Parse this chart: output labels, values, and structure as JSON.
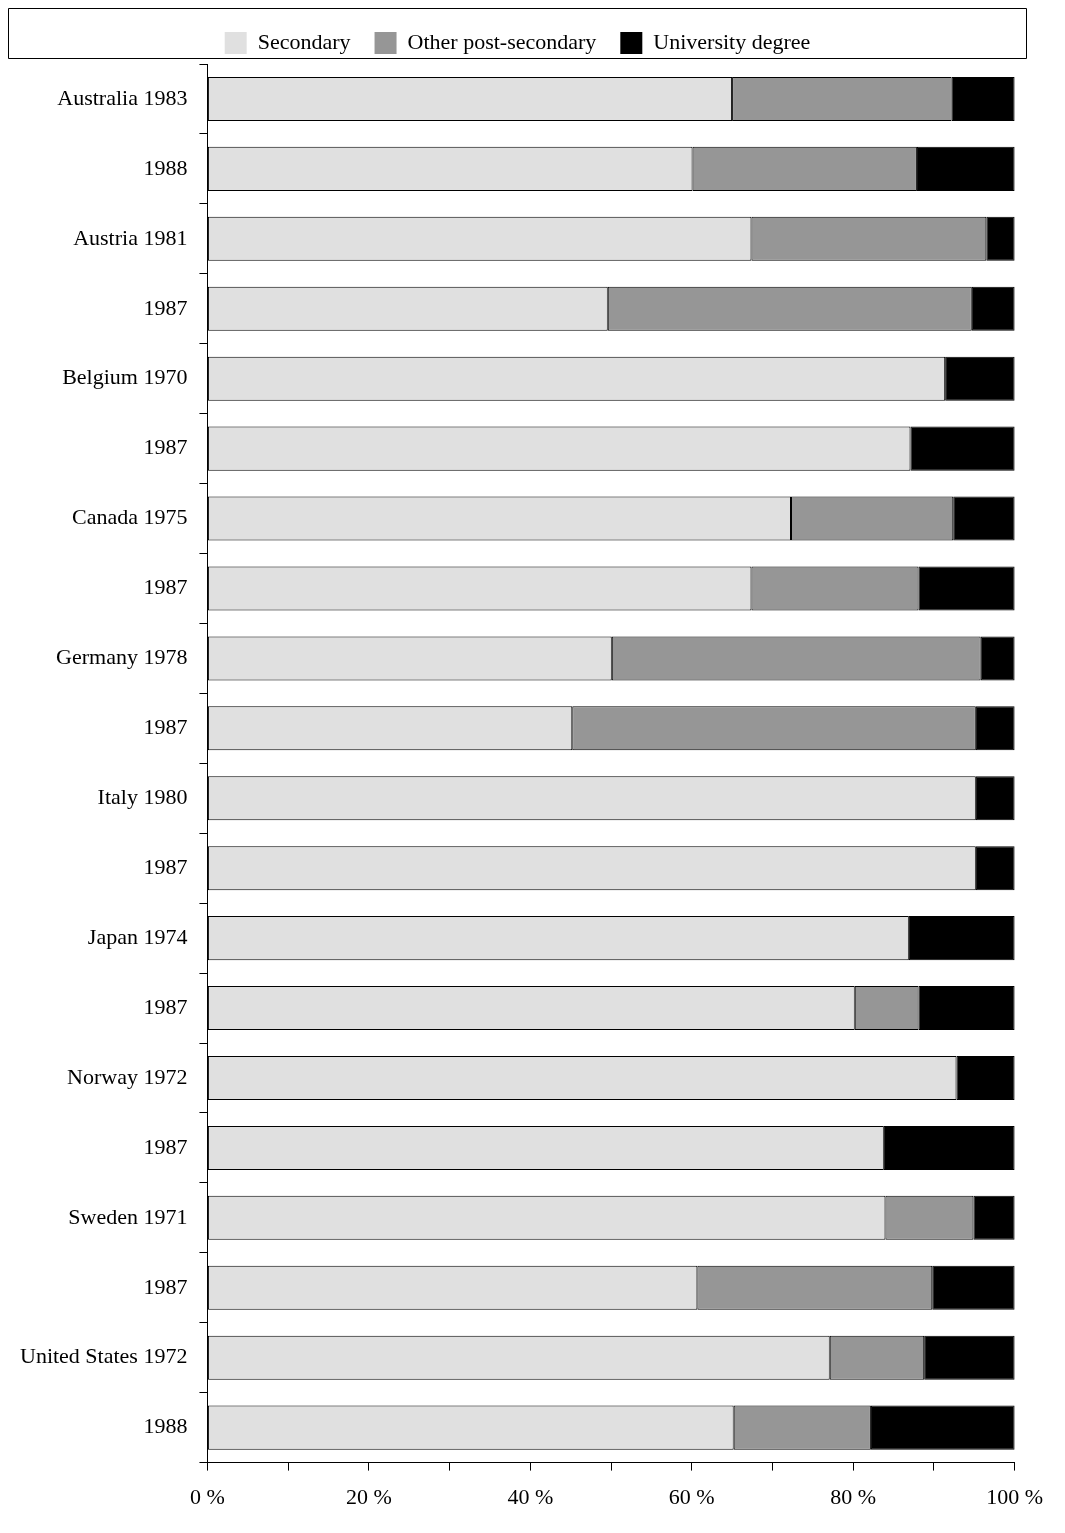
{
  "chart_data": {
    "type": "bar",
    "orientation": "horizontal",
    "stacked": true,
    "legend": "top",
    "grid": false,
    "categories": [
      "Australia 1983",
      "1988",
      "Austria 1981",
      "1987",
      "Belgium 1970",
      "1987",
      "Canada 1975",
      "1987",
      "Germany 1978",
      "1987",
      "Italy 1980",
      "1987",
      "Japan 1974",
      "1987",
      "Norway 1972",
      "1987",
      "Sweden 1971",
      "1987",
      "United States 1972",
      "1988"
    ],
    "series": [
      {
        "name": "Secondary",
        "color": "#e0e0e0",
        "values": [
          65.0,
          60.1,
          67.4,
          49.6,
          91.4,
          87.1,
          72.3,
          67.4,
          50.1,
          45.2,
          95.2,
          95.2,
          86.9,
          80.2,
          92.8,
          83.8,
          84.0,
          60.7,
          77.1,
          65.2
        ]
      },
      {
        "name": "Other post-secondary",
        "color": "#969696",
        "values": [
          27.2,
          27.8,
          29.1,
          45.1,
          0,
          0,
          20.1,
          20.7,
          45.7,
          50.0,
          0,
          0,
          0,
          7.9,
          0,
          0,
          10.9,
          29.1,
          11.7,
          17.0
        ]
      },
      {
        "name": "University degree",
        "color": "#000000",
        "values": [
          7.8,
          12.1,
          3.5,
          5.3,
          8.6,
          12.9,
          7.6,
          11.9,
          4.2,
          4.8,
          4.8,
          4.8,
          13.1,
          11.9,
          7.2,
          16.2,
          5.1,
          10.2,
          11.2,
          17.8
        ]
      }
    ],
    "xlim": [
      0,
      100
    ],
    "xticks": [
      {
        "value": 0,
        "label": "0 %"
      },
      {
        "value": 10,
        "label": null
      },
      {
        "value": 20,
        "label": "20 %"
      },
      {
        "value": 30,
        "label": null
      },
      {
        "value": 40,
        "label": "40 %"
      },
      {
        "value": 50,
        "label": null
      },
      {
        "value": 60,
        "label": "60 %"
      },
      {
        "value": 70,
        "label": null
      },
      {
        "value": 80,
        "label": "80 %"
      },
      {
        "value": 90,
        "label": null
      },
      {
        "value": 100,
        "label": "100 %"
      }
    ]
  }
}
